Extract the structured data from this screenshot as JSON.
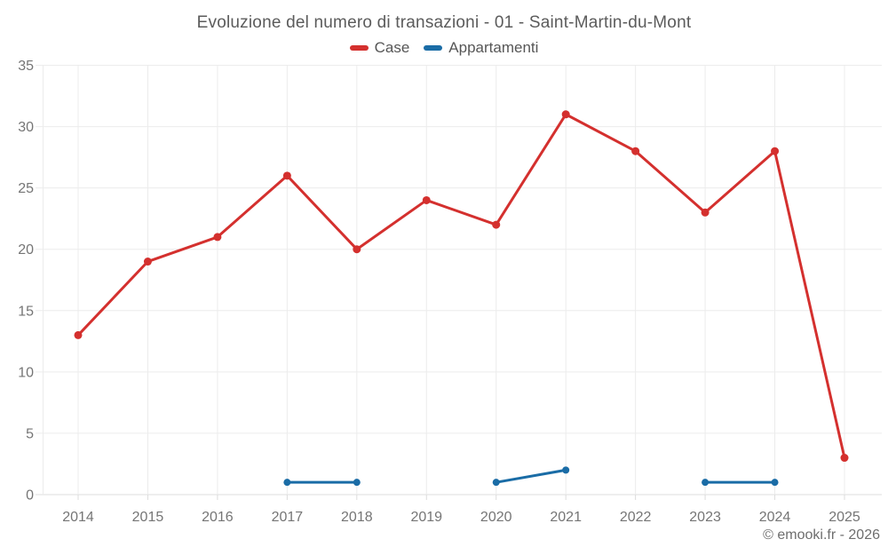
{
  "title": "Evoluzione del numero di transazioni - 01 - Saint-Martin-du-Mont",
  "footer": "© emooki.fr - 2026",
  "style": {
    "background": "#ffffff",
    "grid_color": "#ececec",
    "axis_color": "#dcdcdc",
    "title_color": "#5b5b5b",
    "tick_label_color": "#757575",
    "case_red": "#d4302e",
    "appartamenti_blue": "#1a6ca6"
  },
  "chart_data": {
    "type": "line",
    "title": "Evoluzione del numero di transazioni - 01 - Saint-Martin-du-Mont",
    "x": [
      2014,
      2015,
      2016,
      2017,
      2018,
      2019,
      2020,
      2021,
      2022,
      2023,
      2024,
      2025
    ],
    "series": [
      {
        "name": "Case",
        "color": "#d4302e",
        "values": [
          13,
          19,
          21,
          26,
          20,
          24,
          22,
          31,
          28,
          23,
          28,
          3
        ]
      },
      {
        "name": "Appartamenti",
        "color": "#1a6ca6",
        "values": [
          null,
          null,
          null,
          1,
          1,
          null,
          1,
          2,
          null,
          1,
          1,
          null
        ]
      }
    ],
    "ylim": [
      0,
      35
    ],
    "yticks": [
      0,
      5,
      10,
      15,
      20,
      25,
      30,
      35
    ],
    "grid": true,
    "legend_position": "top",
    "xlabel": "",
    "ylabel": ""
  }
}
